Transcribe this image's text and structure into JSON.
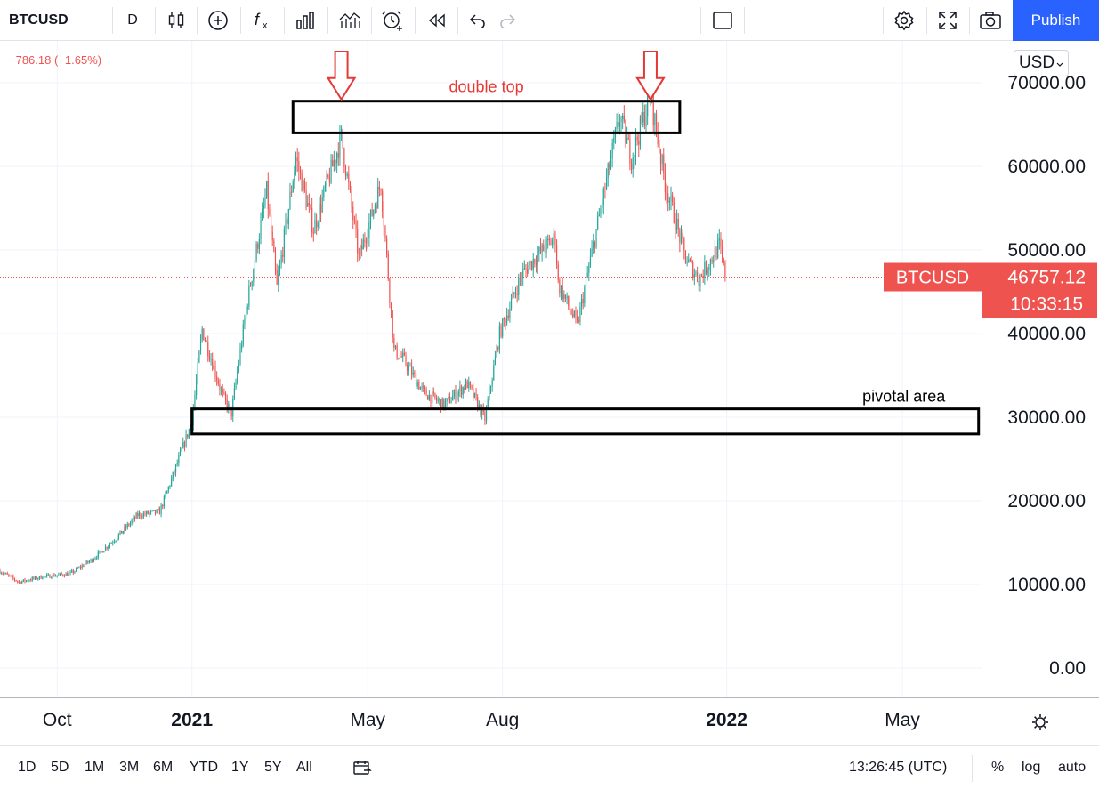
{
  "toolbar": {
    "symbol": "BTCUSD",
    "interval": "D",
    "icons": [
      "candles-icon",
      "add-indicator-icon",
      "fx-icon",
      "bars-icon",
      "compare-icon",
      "alert-icon",
      "replay-icon",
      "undo-icon",
      "redo-icon"
    ],
    "layout_icon": "square-layout-icon",
    "right_icons": [
      "settings-icon",
      "fullscreen-icon",
      "camera-icon"
    ],
    "publish_label": "Publish"
  },
  "header": {
    "change": "−786.18 (−1.65%)",
    "currency": "USD"
  },
  "chart_data": {
    "type": "candlestick",
    "symbol": "BTCUSD",
    "ylim": [
      -3500,
      75000
    ],
    "y_ticks": [
      "70000.00",
      "60000.00",
      "50000.00",
      "40000.00",
      "30000.00",
      "20000.00",
      "10000.00",
      "0.00"
    ],
    "y_tick_values": [
      70000,
      60000,
      50000,
      40000,
      30000,
      20000,
      10000,
      0
    ],
    "x_ticks": [
      {
        "label": "Oct",
        "date": "2020-10-01",
        "bold": false
      },
      {
        "label": "2021",
        "date": "2021-01-01",
        "bold": true
      },
      {
        "label": "May",
        "date": "2021-05-01",
        "bold": false
      },
      {
        "label": "Aug",
        "date": "2021-08-01",
        "bold": false
      },
      {
        "label": "2022",
        "date": "2022-01-01",
        "bold": true
      },
      {
        "label": "May",
        "date": "2022-05-01",
        "bold": false
      }
    ],
    "x_range": [
      "2020-08-23",
      "2022-06-24"
    ],
    "price_path": [
      [
        "2020-08-23",
        11600
      ],
      [
        "2020-09-05",
        10300
      ],
      [
        "2020-09-20",
        10900
      ],
      [
        "2020-10-10",
        11300
      ],
      [
        "2020-10-25",
        13000
      ],
      [
        "2020-11-10",
        15500
      ],
      [
        "2020-11-25",
        18300
      ],
      [
        "2020-12-10",
        18700
      ],
      [
        "2020-12-20",
        23500
      ],
      [
        "2021-01-01",
        29500
      ],
      [
        "2021-01-08",
        40500
      ],
      [
        "2021-01-22",
        32500
      ],
      [
        "2021-01-28",
        30500
      ],
      [
        "2021-02-08",
        44000
      ],
      [
        "2021-02-21",
        57000
      ],
      [
        "2021-02-28",
        45500
      ],
      [
        "2021-03-13",
        61000
      ],
      [
        "2021-03-25",
        52500
      ],
      [
        "2021-04-13",
        63500
      ],
      [
        "2021-04-25",
        49000
      ],
      [
        "2021-05-10",
        58000
      ],
      [
        "2021-05-19",
        38000
      ],
      [
        "2021-05-25",
        37000
      ],
      [
        "2021-06-08",
        33000
      ],
      [
        "2021-06-22",
        31500
      ],
      [
        "2021-07-08",
        34000
      ],
      [
        "2021-07-20",
        29800
      ],
      [
        "2021-07-30",
        40000
      ],
      [
        "2021-08-14",
        47000
      ],
      [
        "2021-08-23",
        49000
      ],
      [
        "2021-09-06",
        51500
      ],
      [
        "2021-09-08",
        46000
      ],
      [
        "2021-09-21",
        41000
      ],
      [
        "2021-10-06",
        54000
      ],
      [
        "2021-10-20",
        66000
      ],
      [
        "2021-10-28",
        61000
      ],
      [
        "2021-11-10",
        68500
      ],
      [
        "2021-11-20",
        58000
      ],
      [
        "2021-12-04",
        49000
      ],
      [
        "2021-12-13",
        46500
      ],
      [
        "2021-12-27",
        50500
      ],
      [
        "2021-12-31",
        46750
      ]
    ],
    "last_price_label": "BTCUSD",
    "last_price": "46757.12",
    "last_price_value": 46757.12,
    "countdown": "10:33:15",
    "colors": {
      "up": "#26a69a",
      "down": "#ef5350",
      "annotation": "#e53935"
    },
    "annotations": {
      "double_top_label": "double top",
      "pivotal_label": "pivotal area",
      "double_top_box": {
        "start": "2021-03-11",
        "end": "2021-11-30",
        "low": 64000,
        "high": 67800
      },
      "pivotal_box": {
        "start": "2021-01-01",
        "end": "2022-06-22",
        "low": 28000,
        "high": 31000
      },
      "arrows": [
        "2021-04-13",
        "2021-11-10"
      ]
    }
  },
  "bottom": {
    "ranges": [
      "1D",
      "5D",
      "1M",
      "3M",
      "6M",
      "YTD",
      "1Y",
      "5Y",
      "All"
    ],
    "time": "13:26:45 (UTC)",
    "percent": "%",
    "log": "log",
    "auto": "auto"
  }
}
